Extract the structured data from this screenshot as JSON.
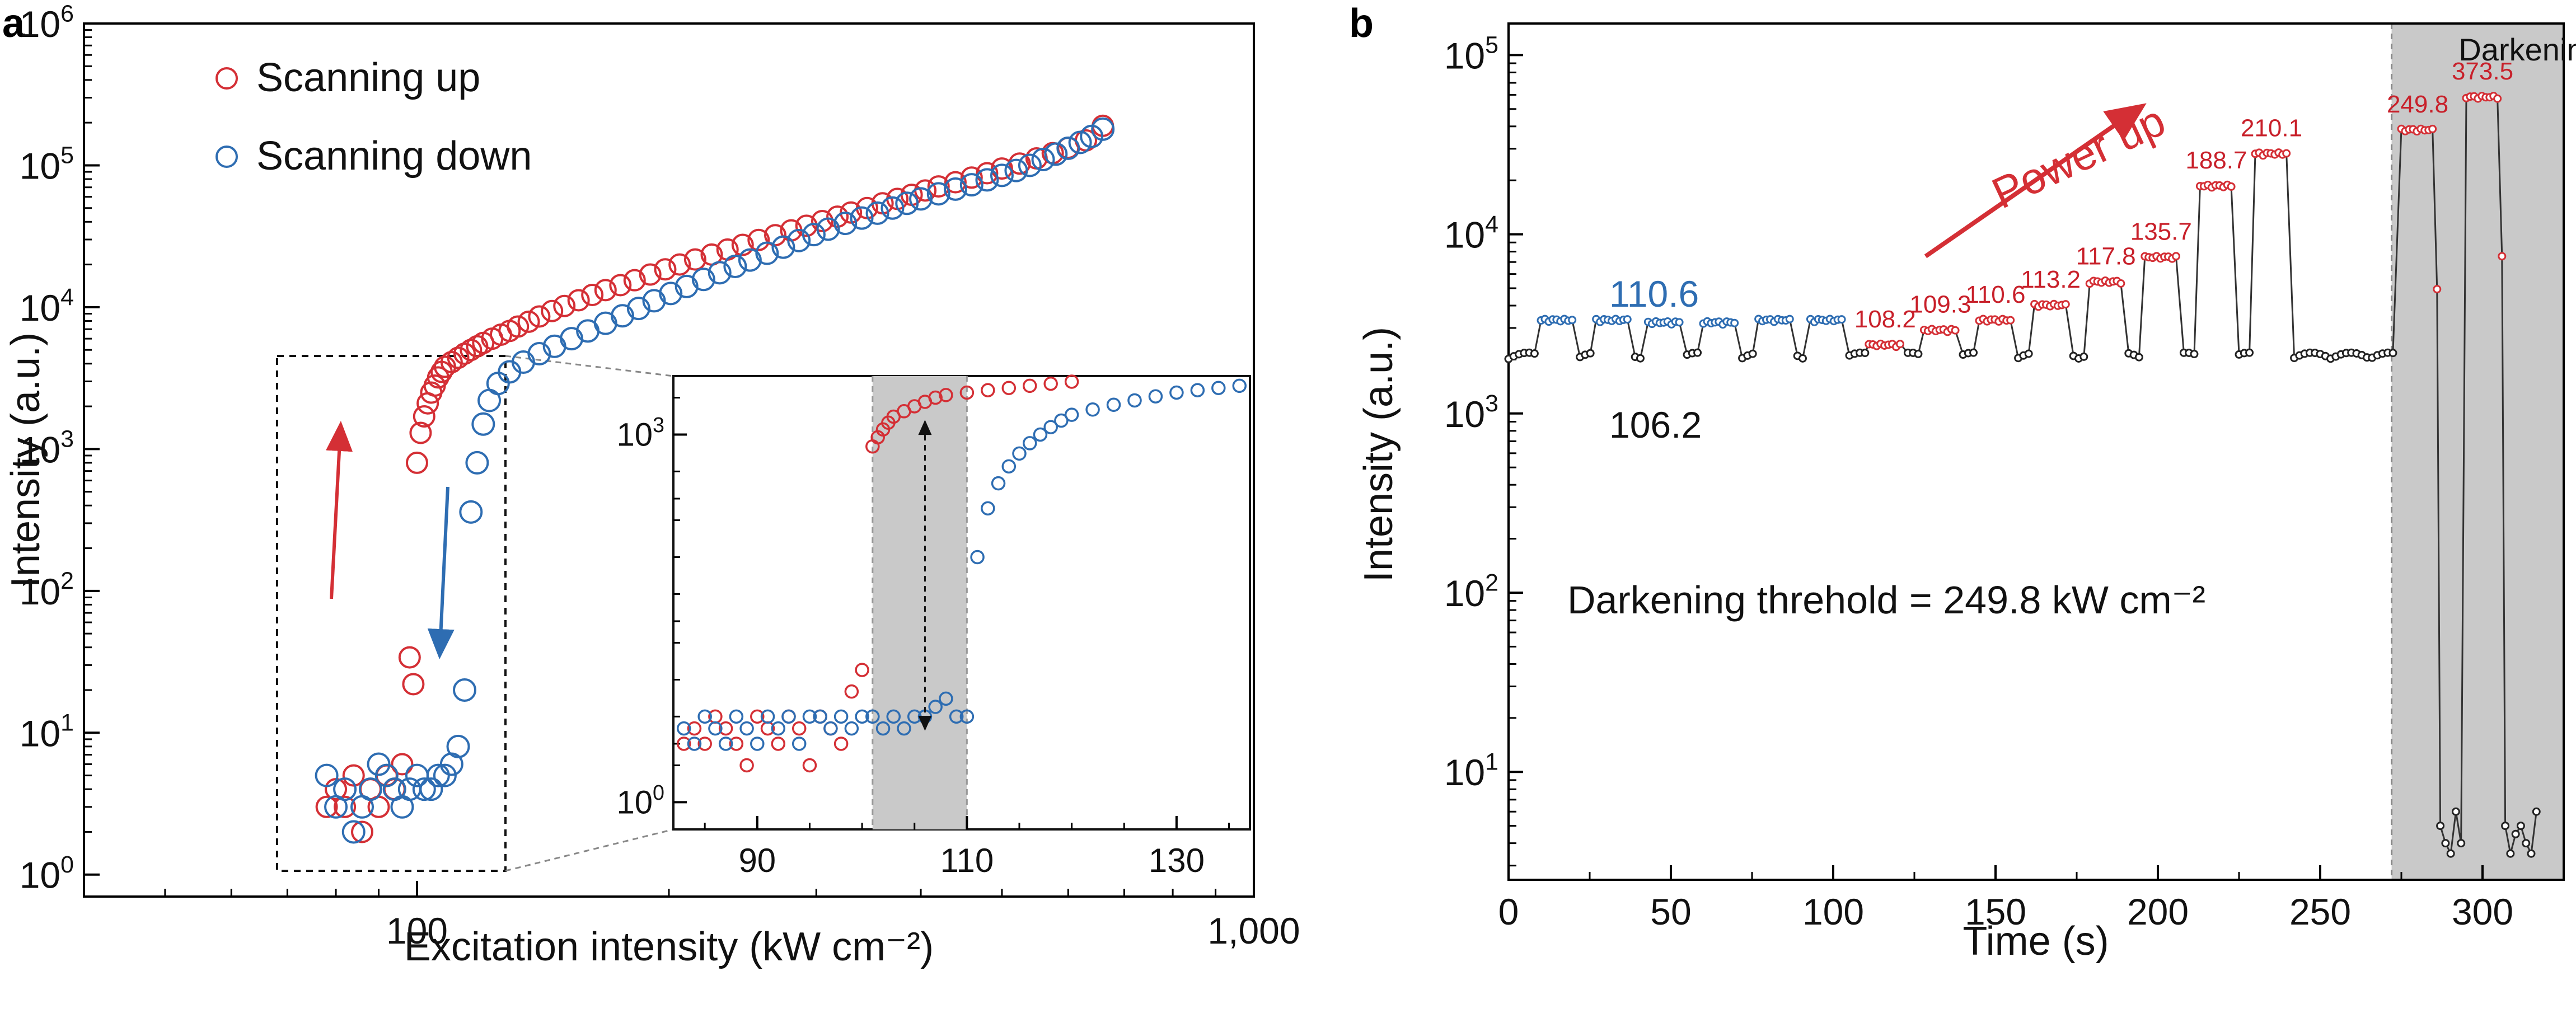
{
  "colors": {
    "red": "#d42f35",
    "blue": "#2e6db2",
    "black": "#222222",
    "shade": "#c9c9c9"
  },
  "chart_data": [
    {
      "panel": "a",
      "type": "scatter",
      "title": "",
      "xlabel": "Excitation intensity (kW cm⁻²)",
      "ylabel": "Intensity (a.u.)",
      "xscale": "log",
      "yscale": "log",
      "xlim": [
        40,
        1000
      ],
      "ylim": [
        0.7,
        1000000
      ],
      "x_tick_labels": [
        "100",
        "1,000"
      ],
      "y_tick_labels": [
        "10^0",
        "10^1",
        "10^2",
        "10^3",
        "10^4",
        "10^5",
        "10^6"
      ],
      "legend": {
        "position": "top-left",
        "entries": [
          "Scanning up",
          "Scanning down"
        ]
      },
      "series": [
        {
          "name": "Scanning up",
          "color": "red",
          "x": [
            78,
            80,
            82,
            84,
            86,
            88,
            90,
            92,
            94,
            96,
            98,
            99,
            100,
            101,
            102,
            103,
            104,
            105,
            106,
            107,
            108,
            110,
            112,
            114,
            116,
            118,
            120,
            123,
            126,
            129,
            132,
            136,
            140,
            145,
            150,
            156,
            162,
            168,
            175,
            182,
            190,
            198,
            206,
            215,
            225,
            235,
            245,
            256,
            268,
            280,
            292,
            305,
            318,
            330,
            345,
            360,
            375,
            390,
            405,
            420,
            440,
            460,
            480,
            500,
            525,
            550,
            575,
            600,
            630,
            660
          ],
          "y": [
            3,
            4,
            3,
            5,
            2,
            4,
            3,
            5,
            4,
            6,
            34,
            22,
            800,
            1300,
            1700,
            2100,
            2500,
            2800,
            3200,
            3500,
            3800,
            4100,
            4400,
            4700,
            5000,
            5300,
            5600,
            6000,
            6400,
            6800,
            7300,
            7900,
            8600,
            9400,
            10200,
            11200,
            12200,
            13200,
            14300,
            15500,
            17000,
            18500,
            20000,
            21700,
            23500,
            25500,
            27500,
            29800,
            32200,
            34800,
            37500,
            40500,
            43500,
            46500,
            50000,
            54000,
            58000,
            62000,
            66500,
            71000,
            76000,
            82000,
            88000,
            95000,
            103000,
            112000,
            122000,
            133000,
            150000,
            190000
          ]
        },
        {
          "name": "Scanning down",
          "color": "blue",
          "x": [
            660,
            640,
            620,
            600,
            580,
            560,
            540,
            520,
            500,
            480,
            460,
            440,
            420,
            400,
            385,
            370,
            355,
            340,
            325,
            310,
            298,
            286,
            274,
            262,
            250,
            240,
            230,
            220,
            210,
            201,
            192,
            184,
            176,
            168,
            160,
            153,
            146,
            140,
            134,
            129,
            125,
            122,
            120,
            118,
            116,
            114,
            112,
            110,
            108,
            106,
            104,
            102,
            100,
            98,
            96,
            94,
            92,
            90,
            88,
            86,
            84,
            82,
            80,
            78
          ],
          "y": [
            180000,
            160000,
            145000,
            132000,
            120000,
            110000,
            100000,
            92000,
            85000,
            79000,
            73000,
            68000,
            63000,
            58000,
            54000,
            50000,
            46000,
            42500,
            39000,
            35500,
            32500,
            29500,
            26500,
            24000,
            21500,
            19400,
            17500,
            15700,
            14000,
            12500,
            11100,
            9800,
            8700,
            7700,
            6800,
            6000,
            5300,
            4700,
            4100,
            3500,
            2900,
            2200,
            1500,
            800,
            360,
            20,
            8,
            6,
            5,
            5,
            4,
            4,
            5,
            4,
            3,
            4,
            5,
            6,
            4,
            3,
            2,
            4,
            3,
            5
          ]
        }
      ],
      "annotations": {
        "arrow_up": "red",
        "arrow_down": "blue"
      },
      "inset": {
        "type": "scatter",
        "x_tick_labels": [
          "90",
          "110",
          "130"
        ],
        "y_tick_labels": [
          "10^0",
          "10^3"
        ],
        "xlim": [
          82,
          137
        ],
        "shaded_xrange": [
          101,
          110
        ],
        "series": [
          {
            "name": "Scanning up",
            "color": "red",
            "x": [
              83,
              84,
              85,
              86,
              87,
              88,
              89,
              90,
              91,
              92,
              93,
              94,
              95,
              96,
              97,
              98,
              99,
              100,
              101,
              101.5,
              102,
              102.5,
              103,
              104,
              105,
              106,
              107,
              108,
              110,
              112,
              114,
              116,
              118,
              120
            ],
            "y": [
              3,
              4,
              3,
              5,
              4,
              3,
              2,
              5,
              4,
              3,
              5,
              4,
              2,
              5,
              4,
              3,
              8,
              12,
              800,
              950,
              1100,
              1250,
              1400,
              1550,
              1700,
              1850,
              2000,
              2100,
              2200,
              2300,
              2400,
              2500,
              2600,
              2700
            ]
          },
          {
            "name": "Scanning down",
            "color": "blue",
            "x": [
              83,
              84,
              85,
              86,
              87,
              88,
              89,
              90,
              91,
              92,
              93,
              94,
              95,
              96,
              97,
              98,
              99,
              100,
              101,
              102,
              103,
              104,
              105,
              106,
              107,
              108,
              109,
              110,
              111,
              112,
              113,
              114,
              115,
              116,
              117,
              118,
              119,
              120,
              122,
              124,
              126,
              128,
              130,
              132,
              134,
              136
            ],
            "y": [
              4,
              3,
              5,
              4,
              3,
              5,
              4,
              3,
              5,
              4,
              5,
              3,
              5,
              5,
              4,
              5,
              4,
              5,
              5,
              4,
              5,
              4,
              5,
              5,
              6,
              7,
              5,
              5,
              100,
              250,
              400,
              550,
              700,
              850,
              1000,
              1150,
              1300,
              1450,
              1600,
              1750,
              1900,
              2050,
              2200,
              2300,
              2400,
              2500
            ]
          }
        ],
        "double_arrow": "vertical"
      }
    },
    {
      "panel": "b",
      "type": "line",
      "title": "",
      "xlabel": "Time (s)",
      "ylabel": "Intensity (a.u.)",
      "xscale": "linear",
      "yscale": "log",
      "xlim": [
        0,
        325
      ],
      "ylim": [
        2.5,
        150000
      ],
      "x_tick_labels": [
        "0",
        "50",
        "100",
        "150",
        "200",
        "250",
        "300"
      ],
      "y_tick_labels": [
        "10^1",
        "10^2",
        "10^3",
        "10^4",
        "10^5"
      ],
      "shaded_xrange": [
        272,
        325
      ],
      "shaded_label": "Darkening",
      "baseline_value": 2100,
      "steps_calibration": [
        {
          "x_start": 10,
          "x_end": 20,
          "y": 3300,
          "color": "blue"
        },
        {
          "x_start": 27,
          "x_end": 37,
          "y": 3300,
          "color": "blue"
        },
        {
          "x_start": 43,
          "x_end": 53,
          "y": 3200,
          "color": "blue"
        },
        {
          "x_start": 60,
          "x_end": 70,
          "y": 3200,
          "color": "blue"
        },
        {
          "x_start": 77,
          "x_end": 87,
          "y": 3300,
          "color": "blue"
        },
        {
          "x_start": 93,
          "x_end": 103,
          "y": 3300,
          "color": "blue"
        }
      ],
      "steps_power_up": [
        {
          "x_start": 111,
          "x_end": 121,
          "y": 2400,
          "label": "108.2"
        },
        {
          "x_start": 128,
          "x_end": 138,
          "y": 2900,
          "label": "109.3"
        },
        {
          "x_start": 145,
          "x_end": 155,
          "y": 3300,
          "label": "110.6"
        },
        {
          "x_start": 162,
          "x_end": 172,
          "y": 4000,
          "label": "113.2"
        },
        {
          "x_start": 179,
          "x_end": 189,
          "y": 5400,
          "label": "117.8"
        },
        {
          "x_start": 196,
          "x_end": 206,
          "y": 7400,
          "label": "135.7"
        },
        {
          "x_start": 213,
          "x_end": 223,
          "y": 18500,
          "label": "188.7"
        },
        {
          "x_start": 230,
          "x_end": 240,
          "y": 28000,
          "label": "210.1"
        },
        {
          "x_start": 275,
          "x_end": 285,
          "y": 38000,
          "label": "249.8"
        },
        {
          "x_start": 295,
          "x_end": 305,
          "y": 58000,
          "label": "373.5"
        }
      ],
      "dark_dip_values": [
        5,
        4,
        3.5,
        6,
        4,
        5,
        3.5,
        4.5
      ],
      "annotations": {
        "calibration_label": "110.6",
        "baseline_label": "106.2",
        "power_up_text": "Power up",
        "threshold_text": "Darkening threhold = 249.8 kW cm⁻²"
      }
    }
  ]
}
